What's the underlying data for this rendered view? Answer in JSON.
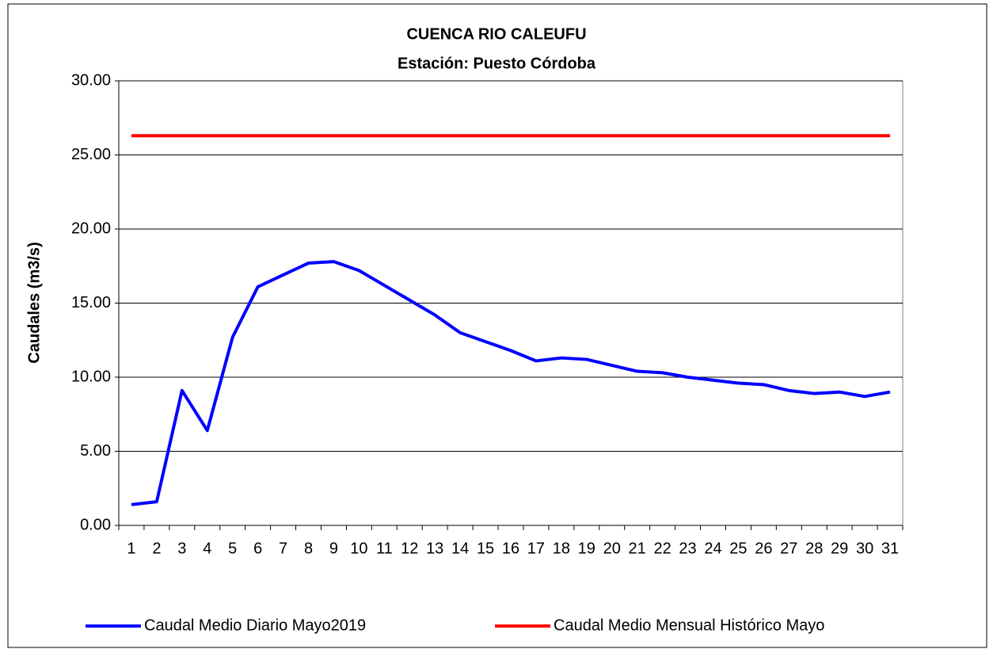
{
  "chart_data": {
    "type": "line",
    "title": "CUENCA RIO CALEUFU",
    "subtitle": "Estación: Puesto Córdoba",
    "y_label": "Caudales (m3/s)",
    "categories": [
      "1",
      "2",
      "3",
      "4",
      "5",
      "6",
      "7",
      "8",
      "9",
      "10",
      "11",
      "12",
      "13",
      "14",
      "15",
      "16",
      "17",
      "18",
      "19",
      "20",
      "21",
      "22",
      "23",
      "24",
      "25",
      "26",
      "27",
      "28",
      "29",
      "30",
      "31"
    ],
    "series": [
      {
        "name": "Caudal Medio Diario Mayo2019",
        "color": "#0000ff",
        "values": [
          1.4,
          1.6,
          9.1,
          6.4,
          12.7,
          16.1,
          16.9,
          17.7,
          17.8,
          17.2,
          16.2,
          15.2,
          14.2,
          13.0,
          12.4,
          11.8,
          11.1,
          11.3,
          11.2,
          10.8,
          10.4,
          10.3,
          10.0,
          9.8,
          9.6,
          9.5,
          9.1,
          8.9,
          9.0,
          8.7,
          9.0
        ]
      },
      {
        "name": "Caudal Medio Mensual Histórico Mayo",
        "color": "#ff0000",
        "values": [
          26.3,
          26.3,
          26.3,
          26.3,
          26.3,
          26.3,
          26.3,
          26.3,
          26.3,
          26.3,
          26.3,
          26.3,
          26.3,
          26.3,
          26.3,
          26.3,
          26.3,
          26.3,
          26.3,
          26.3,
          26.3,
          26.3,
          26.3,
          26.3,
          26.3,
          26.3,
          26.3,
          26.3,
          26.3,
          26.3,
          26.3
        ]
      }
    ],
    "ylim": [
      0,
      30
    ],
    "yticks": [
      {
        "value": 0,
        "label": "0.00"
      },
      {
        "value": 5,
        "label": "5.00"
      },
      {
        "value": 10,
        "label": "10.00"
      },
      {
        "value": 15,
        "label": "15.00"
      },
      {
        "value": 20,
        "label": "20.00"
      },
      {
        "value": 25,
        "label": "25.00"
      },
      {
        "value": 30,
        "label": "30.00"
      }
    ],
    "grid": true,
    "legend": "bottom"
  }
}
